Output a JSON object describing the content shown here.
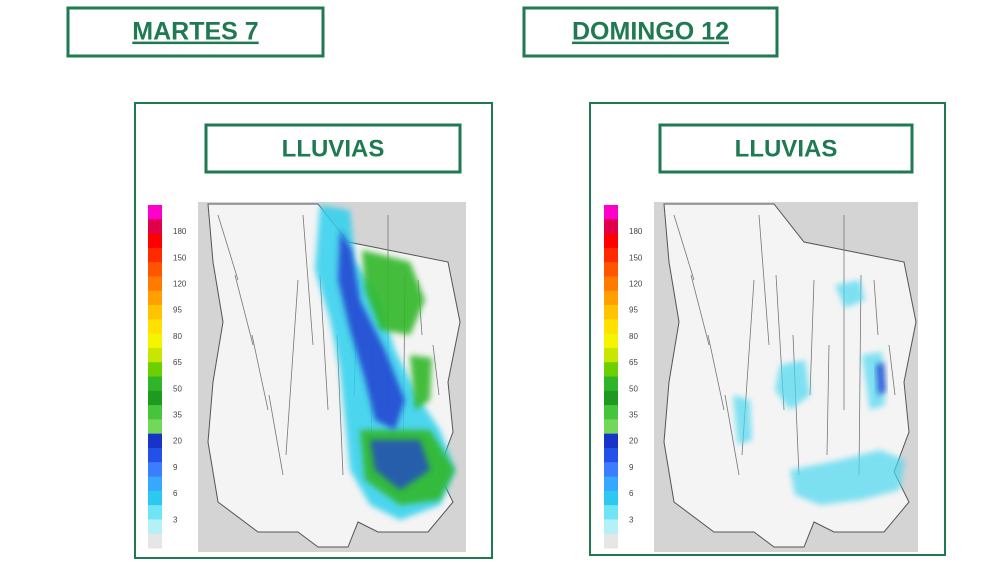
{
  "panels": [
    {
      "day": "MARTES 7",
      "label": "LLUVIAS",
      "scale": [
        "180",
        "150",
        "120",
        "95",
        "80",
        "65",
        "50",
        "35",
        "20",
        "9",
        "6",
        "3"
      ]
    },
    {
      "day": "DOMINGO 12",
      "label": "LLUVIAS",
      "scale": [
        "180",
        "150",
        "120",
        "95",
        "80",
        "65",
        "50",
        "35",
        "20",
        "9",
        "6",
        "3"
      ]
    }
  ]
}
